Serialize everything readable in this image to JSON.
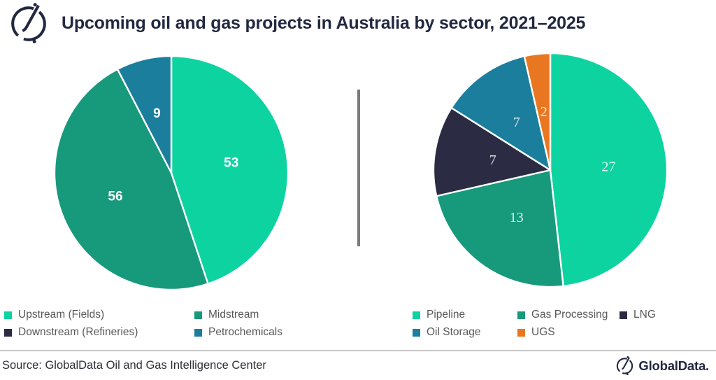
{
  "header": {
    "title": "Upcoming oil and gas projects in Australia by sector, 2021–2025"
  },
  "colors": {
    "mint": "#0DD3A1",
    "green": "#17997C",
    "teal": "#1B7E9D",
    "navy": "#2B2B43",
    "orange": "#E97721",
    "title_text": "#232841",
    "legend_text": "#595959",
    "vertical_divider": "#7A7A7A",
    "footer_rule": "#C6C6C6"
  },
  "chart_data": [
    {
      "type": "pie",
      "position": "left",
      "start_angle_deg": 0,
      "direction": "clockwise",
      "legend_position": "bottom",
      "slices": [
        {
          "label": "Upstream (Fields)",
          "value": 53,
          "color": "#0DD3A1"
        },
        {
          "label": "Midstream",
          "value": 56,
          "color": "#17997C"
        },
        {
          "label": "Petrochemicals",
          "value": 9,
          "color": "#1B7E9D"
        }
      ],
      "legend": [
        {
          "label": "Upstream (Fields)",
          "color": "#0DD3A1"
        },
        {
          "label": "Midstream",
          "color": "#17997C"
        },
        {
          "label": "Downstream (Refineries)",
          "color": "#2B2B43"
        },
        {
          "label": "Petrochemicals",
          "color": "#1B7E9D"
        }
      ]
    },
    {
      "type": "pie",
      "position": "right",
      "start_angle_deg": 0,
      "direction": "clockwise",
      "legend_position": "bottom",
      "slices": [
        {
          "label": "Pipeline",
          "value": 27,
          "color": "#0DD3A1"
        },
        {
          "label": "Gas Processing",
          "value": 13,
          "color": "#17997C"
        },
        {
          "label": "LNG",
          "value": 7,
          "color": "#2B2B43"
        },
        {
          "label": "Oil Storage",
          "value": 7,
          "color": "#1B7E9D"
        },
        {
          "label": "UGS",
          "value": 2,
          "color": "#E97721"
        }
      ],
      "legend": [
        {
          "label": "Pipeline",
          "color": "#0DD3A1"
        },
        {
          "label": "Gas Processing",
          "color": "#17997C"
        },
        {
          "label": "LNG",
          "color": "#2B2B43"
        },
        {
          "label": "Oil Storage",
          "color": "#1B7E9D"
        },
        {
          "label": "UGS",
          "color": "#E97721"
        }
      ]
    }
  ],
  "footer": {
    "source": "Source: GlobalData Oil and Gas Intelligence Center",
    "brand": "GlobalData."
  }
}
